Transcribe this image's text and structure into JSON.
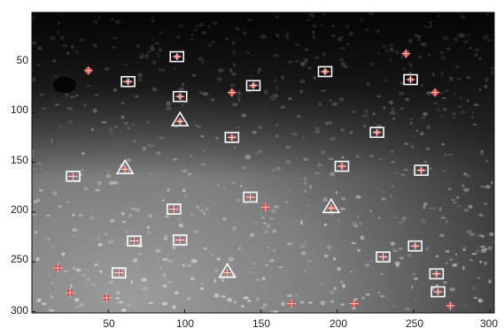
{
  "chart_data": {
    "type": "scatter",
    "title": "",
    "xlabel": "",
    "ylabel": "",
    "xlim": [
      0,
      300
    ],
    "ylim": [
      0,
      305
    ],
    "y_reversed": true,
    "background": "grayscale microscopy image with many small bright spots, dark at top, lighter gray toward lower-left",
    "x_ticks": [
      "50",
      "100",
      "150",
      "200",
      "250",
      "300"
    ],
    "y_ticks": [
      "50",
      "100",
      "150",
      "200",
      "250",
      "300"
    ],
    "series": [
      {
        "marker": "square",
        "color": "#ffffff",
        "inner_color": "#d94848",
        "points": [
          [
            95,
            44
          ],
          [
            63,
            69
          ],
          [
            97,
            84
          ],
          [
            145,
            73
          ],
          [
            192,
            59
          ],
          [
            248,
            67
          ],
          [
            131,
            125
          ],
          [
            226,
            120
          ],
          [
            27,
            164
          ],
          [
            203,
            154
          ],
          [
            255,
            158
          ],
          [
            93,
            197
          ],
          [
            143,
            185
          ],
          [
            67,
            229
          ],
          [
            97,
            228
          ],
          [
            57,
            261
          ],
          [
            230,
            245
          ],
          [
            251,
            234
          ],
          [
            265,
            262
          ],
          [
            266,
            280
          ]
        ]
      },
      {
        "marker": "triangle",
        "color": "#ffffff",
        "inner_color": "#d94848",
        "points": [
          [
            97,
            108
          ],
          [
            61,
            156
          ],
          [
            196,
            195
          ],
          [
            128,
            260
          ]
        ]
      },
      {
        "marker": "dot",
        "color": "#d94848",
        "points": [
          [
            245,
            41
          ],
          [
            37,
            58
          ],
          [
            131,
            80
          ],
          [
            264,
            80
          ],
          [
            153,
            195
          ],
          [
            17,
            256
          ],
          [
            25,
            281
          ],
          [
            49,
            286
          ],
          [
            170,
            292
          ],
          [
            211,
            292
          ],
          [
            274,
            294
          ]
        ]
      }
    ]
  }
}
